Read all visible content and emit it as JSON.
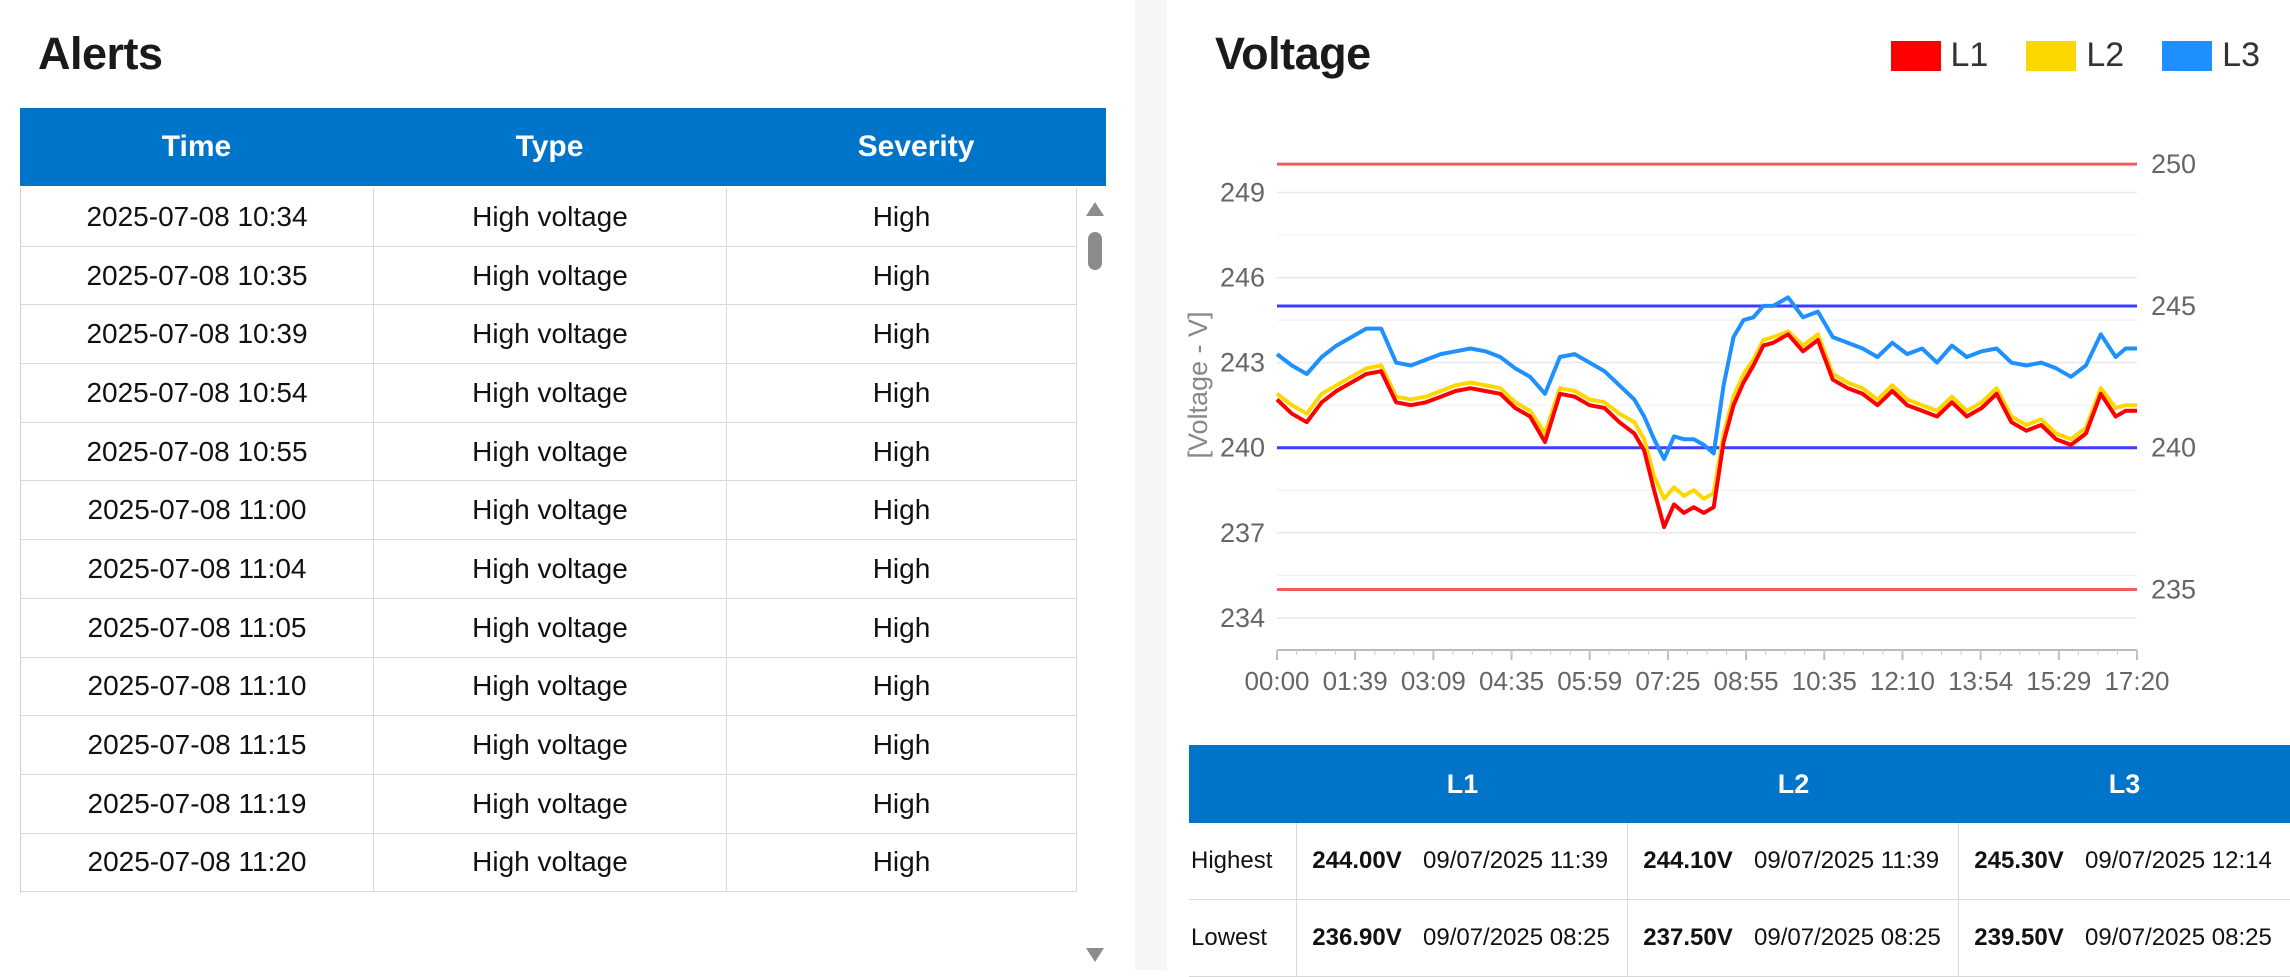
{
  "alerts": {
    "title": "Alerts",
    "columns": [
      "Time",
      "Type",
      "Severity"
    ],
    "rows": [
      {
        "time": "2025-07-08 10:34",
        "type": "High voltage",
        "severity": "High"
      },
      {
        "time": "2025-07-08 10:35",
        "type": "High voltage",
        "severity": "High"
      },
      {
        "time": "2025-07-08 10:39",
        "type": "High voltage",
        "severity": "High"
      },
      {
        "time": "2025-07-08 10:54",
        "type": "High voltage",
        "severity": "High"
      },
      {
        "time": "2025-07-08 10:55",
        "type": "High voltage",
        "severity": "High"
      },
      {
        "time": "2025-07-08 11:00",
        "type": "High voltage",
        "severity": "High"
      },
      {
        "time": "2025-07-08 11:04",
        "type": "High voltage",
        "severity": "High"
      },
      {
        "time": "2025-07-08 11:05",
        "type": "High voltage",
        "severity": "High"
      },
      {
        "time": "2025-07-08 11:10",
        "type": "High voltage",
        "severity": "High"
      },
      {
        "time": "2025-07-08 11:15",
        "type": "High voltage",
        "severity": "High"
      },
      {
        "time": "2025-07-08 11:19",
        "type": "High voltage",
        "severity": "High"
      },
      {
        "time": "2025-07-08 11:20",
        "type": "High voltage",
        "severity": "High"
      }
    ]
  },
  "voltage": {
    "title": "Voltage",
    "legend": [
      {
        "name": "L1",
        "color": "#ff0000"
      },
      {
        "name": "L2",
        "color": "#ffd700"
      },
      {
        "name": "L3",
        "color": "#1e90ff"
      }
    ]
  },
  "chart_data": {
    "type": "line",
    "ylabel": "[Voltage - V]",
    "ylim": [
      233.5,
      250.5
    ],
    "yticks_left": [
      234,
      237,
      240,
      243,
      246,
      249
    ],
    "yticks_right": [
      235,
      240,
      245,
      250
    ],
    "xticks": [
      "00:00",
      "01:39",
      "03:09",
      "04:35",
      "05:59",
      "07:25",
      "08:55",
      "10:35",
      "12:10",
      "13:54",
      "15:29",
      "17:20"
    ],
    "x": [
      0,
      0.3,
      0.6,
      0.9,
      1.2,
      1.5,
      1.8,
      2.1,
      2.4,
      2.7,
      3.0,
      3.3,
      3.6,
      3.9,
      4.2,
      4.5,
      4.8,
      5.1,
      5.4,
      5.7,
      6.0,
      6.3,
      6.6,
      6.9,
      7.2,
      7.4,
      7.6,
      7.8,
      8.0,
      8.2,
      8.4,
      8.6,
      8.8,
      9.0,
      9.2,
      9.4,
      9.6,
      9.8,
      10.0,
      10.3,
      10.6,
      10.9,
      11.2,
      11.5,
      11.8,
      12.1,
      12.4,
      12.7,
      13.0,
      13.3,
      13.6,
      13.9,
      14.2,
      14.5,
      14.8,
      15.1,
      15.4,
      15.7,
      16.0,
      16.3,
      16.6,
      16.9,
      17.1,
      17.33
    ],
    "x_unit": "hours",
    "series": [
      {
        "name": "L1",
        "color": "#ff0000",
        "values": [
          241.7,
          241.2,
          240.9,
          241.6,
          242.0,
          242.3,
          242.6,
          242.7,
          241.6,
          241.5,
          241.6,
          241.8,
          242.0,
          242.1,
          242.0,
          241.9,
          241.4,
          241.1,
          240.2,
          241.9,
          241.8,
          241.5,
          241.4,
          240.9,
          240.5,
          239.9,
          238.5,
          237.2,
          238.0,
          237.7,
          237.9,
          237.7,
          237.9,
          240.2,
          241.5,
          242.3,
          242.9,
          243.6,
          243.7,
          244.0,
          243.4,
          243.8,
          242.4,
          242.1,
          241.9,
          241.5,
          242.0,
          241.5,
          241.3,
          241.1,
          241.6,
          241.1,
          241.4,
          241.9,
          240.9,
          240.6,
          240.8,
          240.3,
          240.1,
          240.5,
          241.9,
          241.1,
          241.3,
          241.3
        ]
      },
      {
        "name": "L2",
        "color": "#ffd700",
        "values": [
          241.9,
          241.5,
          241.2,
          241.9,
          242.2,
          242.5,
          242.8,
          242.9,
          241.8,
          241.7,
          241.8,
          242.0,
          242.2,
          242.3,
          242.2,
          242.1,
          241.6,
          241.3,
          240.5,
          242.1,
          242.0,
          241.7,
          241.6,
          241.2,
          240.9,
          240.3,
          239.0,
          238.2,
          238.6,
          238.3,
          238.5,
          238.2,
          238.4,
          240.5,
          241.8,
          242.6,
          243.1,
          243.8,
          243.9,
          244.1,
          243.6,
          244.0,
          242.6,
          242.3,
          242.1,
          241.7,
          242.2,
          241.7,
          241.5,
          241.3,
          241.8,
          241.3,
          241.6,
          242.1,
          241.1,
          240.8,
          241.0,
          240.5,
          240.3,
          240.7,
          242.1,
          241.4,
          241.5,
          241.5
        ]
      },
      {
        "name": "L3",
        "color": "#1e90ff",
        "values": [
          243.3,
          242.9,
          242.6,
          243.2,
          243.6,
          243.9,
          244.2,
          244.2,
          243.0,
          242.9,
          243.1,
          243.3,
          243.4,
          243.5,
          243.4,
          243.2,
          242.8,
          242.5,
          241.9,
          243.2,
          243.3,
          243.0,
          242.7,
          242.2,
          241.7,
          241.1,
          240.3,
          239.6,
          240.4,
          240.3,
          240.3,
          240.1,
          239.8,
          242.2,
          243.9,
          244.5,
          244.6,
          245.0,
          245.0,
          245.3,
          244.6,
          244.8,
          243.9,
          243.7,
          243.5,
          243.2,
          243.7,
          243.3,
          243.5,
          243.0,
          243.6,
          243.2,
          243.4,
          243.5,
          243.0,
          242.9,
          243.0,
          242.8,
          242.5,
          242.9,
          244.0,
          243.2,
          243.5,
          243.5
        ]
      }
    ],
    "reference_lines": [
      {
        "value": 250,
        "color": "#f45b5b"
      },
      {
        "value": 245,
        "color": "#3d3dff"
      },
      {
        "value": 240,
        "color": "#3d3dff"
      },
      {
        "value": 235,
        "color": "#f45b5b"
      }
    ],
    "grid": true,
    "legend_position": "top-right"
  },
  "stats": {
    "headers": [
      "L1",
      "L2",
      "L3"
    ],
    "rows": [
      {
        "label": "Highest",
        "cells": [
          {
            "value": "244.00V",
            "date": "09/07/2025 11:39"
          },
          {
            "value": "244.10V",
            "date": "09/07/2025 11:39"
          },
          {
            "value": "245.30V",
            "date": "09/07/2025 12:14"
          }
        ]
      },
      {
        "label": "Lowest",
        "cells": [
          {
            "value": "236.90V",
            "date": "09/07/2025 08:25"
          },
          {
            "value": "237.50V",
            "date": "09/07/2025 08:25"
          },
          {
            "value": "239.50V",
            "date": "09/07/2025 08:25"
          }
        ]
      }
    ]
  }
}
